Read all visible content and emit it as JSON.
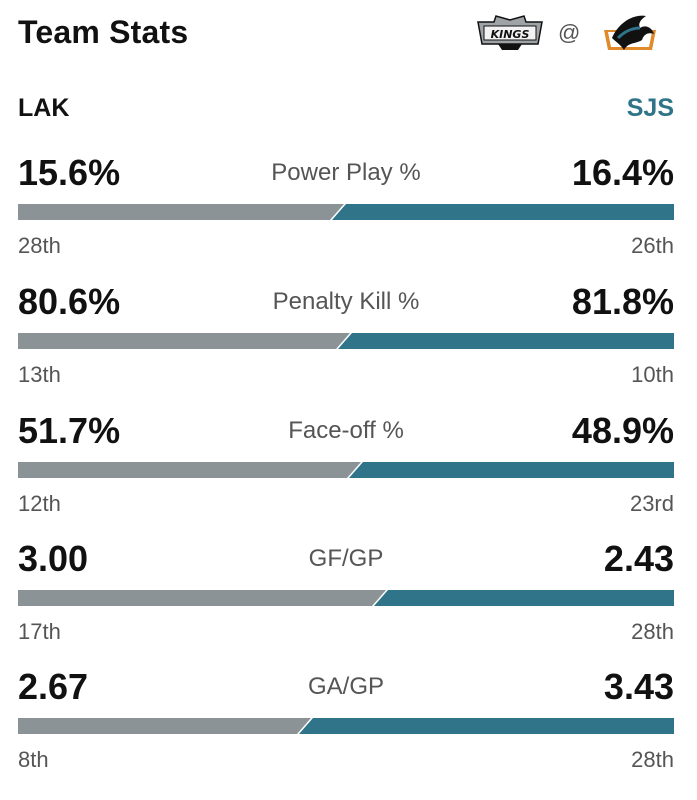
{
  "header": {
    "title": "Team Stats",
    "at_symbol": "@",
    "away_logo_icon": "kings-logo-icon",
    "home_logo_icon": "sharks-logo-icon"
  },
  "teams": {
    "away": "LAK",
    "home": "SJS"
  },
  "colors": {
    "away_bar": "#8b9396",
    "home_bar": "#2f7489",
    "home_label": "#2f7489"
  },
  "stats": [
    {
      "label": "Power Play %",
      "away_value": "15.6%",
      "home_value": "16.4%",
      "away_rank": "28th",
      "home_rank": "26th",
      "away_num": 15.6,
      "home_num": 16.4
    },
    {
      "label": "Penalty Kill %",
      "away_value": "80.6%",
      "home_value": "81.8%",
      "away_rank": "13th",
      "home_rank": "10th",
      "away_num": 80.6,
      "home_num": 81.8
    },
    {
      "label": "Face-off %",
      "away_value": "51.7%",
      "home_value": "48.9%",
      "away_rank": "12th",
      "home_rank": "23rd",
      "away_num": 51.7,
      "home_num": 48.9
    },
    {
      "label": "GF/GP",
      "away_value": "3.00",
      "home_value": "2.43",
      "away_rank": "17th",
      "home_rank": "28th",
      "away_num": 3.0,
      "home_num": 2.43
    },
    {
      "label": "GA/GP",
      "away_value": "2.67",
      "home_value": "3.43",
      "away_rank": "8th",
      "home_rank": "28th",
      "away_num": 2.67,
      "home_num": 3.43
    }
  ]
}
